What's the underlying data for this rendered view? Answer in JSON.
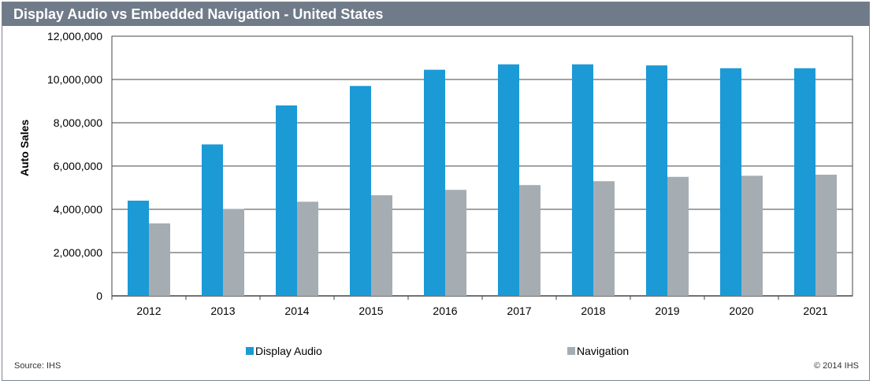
{
  "chart_data": {
    "type": "bar",
    "title": "Display Audio vs Embedded Navigation - United States",
    "xlabel": "",
    "ylabel": "Auto Sales",
    "ylim": [
      0,
      12000000
    ],
    "yticks": [
      0,
      2000000,
      4000000,
      6000000,
      8000000,
      10000000,
      12000000
    ],
    "ytick_labels": [
      "0",
      "2,000,000",
      "4,000,000",
      "6,000,000",
      "8,000,000",
      "10,000,000",
      "12,000,000"
    ],
    "categories": [
      "2012",
      "2013",
      "2014",
      "2015",
      "2016",
      "2017",
      "2018",
      "2019",
      "2020",
      "2021"
    ],
    "series": [
      {
        "name": "Display Audio",
        "color": "#1b9ad6",
        "values": [
          4400000,
          7000000,
          8800000,
          9700000,
          10450000,
          10700000,
          10700000,
          10650000,
          10520000,
          10520000
        ]
      },
      {
        "name": "Navigation",
        "color": "#a5adb3",
        "values": [
          3350000,
          4020000,
          4350000,
          4650000,
          4900000,
          5120000,
          5300000,
          5500000,
          5550000,
          5600000
        ]
      }
    ],
    "grid": true,
    "legend_position": "bottom"
  },
  "footer": {
    "source": "Source: IHS",
    "copyright": "© 2014 IHS"
  }
}
